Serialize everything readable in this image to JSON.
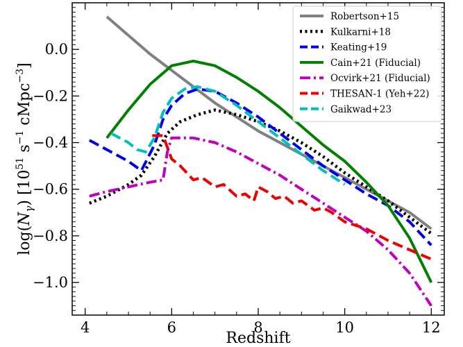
{
  "chart_data": {
    "type": "line",
    "xlabel": "Redshift",
    "ylabel_parts": {
      "prefix": "log(",
      "n_symbol": "N",
      "n_sub": "γ",
      "middle": ") [10",
      "exp1": "51",
      "unit1": " s",
      "exp2": "−1",
      "unit2": " cMpc",
      "exp3": "−3",
      "suffix": "]"
    },
    "xlim": [
      3.7,
      12.3
    ],
    "ylim": [
      -1.14,
      0.2
    ],
    "x_ticks": [
      4,
      6,
      8,
      10,
      12
    ],
    "x_tick_labels": [
      "4",
      "6",
      "8",
      "10",
      "12"
    ],
    "y_ticks": [
      0.0,
      -0.2,
      -0.4,
      -0.6,
      -0.8,
      -1.0
    ],
    "y_tick_labels": [
      "0.0",
      "−0.2",
      "−0.4",
      "−0.6",
      "−0.8",
      "−1.0"
    ],
    "legend_position": "top-right",
    "grid": false,
    "series": [
      {
        "name": "Robertson+15",
        "color": "#808080",
        "dash": "solid",
        "x": [
          4.5,
          5.0,
          5.5,
          6.0,
          6.5,
          7.0,
          7.5,
          8.0,
          8.5,
          9.0,
          9.5,
          10.0,
          10.5,
          11.0,
          11.5,
          12.0
        ],
        "y": [
          0.14,
          0.06,
          -0.02,
          -0.09,
          -0.16,
          -0.23,
          -0.29,
          -0.35,
          -0.4,
          -0.45,
          -0.5,
          -0.55,
          -0.6,
          -0.65,
          -0.7,
          -0.77
        ]
      },
      {
        "name": "Kulkarni+18",
        "color": "#000000",
        "dash": "dotted",
        "x": [
          4.1,
          4.5,
          5.0,
          5.3,
          5.6,
          5.9,
          6.2,
          6.6,
          7.0,
          7.5,
          8.0,
          8.5,
          9.0,
          9.5,
          10.0,
          10.5,
          11.0,
          11.5,
          12.0
        ],
        "y": [
          -0.66,
          -0.63,
          -0.58,
          -0.54,
          -0.46,
          -0.36,
          -0.31,
          -0.28,
          -0.26,
          -0.28,
          -0.31,
          -0.35,
          -0.4,
          -0.46,
          -0.53,
          -0.59,
          -0.65,
          -0.72,
          -0.79
        ]
      },
      {
        "name": "Keating+19",
        "color": "#0000ee",
        "dash": "dashed",
        "x": [
          4.1,
          4.5,
          5.0,
          5.3,
          5.6,
          5.8,
          6.0,
          6.3,
          6.6,
          7.0,
          7.5,
          8.0,
          8.5,
          9.0,
          9.5,
          10.0,
          10.5,
          11.0,
          11.5,
          12.0
        ],
        "y": [
          -0.39,
          -0.43,
          -0.48,
          -0.52,
          -0.41,
          -0.3,
          -0.24,
          -0.19,
          -0.17,
          -0.18,
          -0.23,
          -0.29,
          -0.36,
          -0.43,
          -0.5,
          -0.56,
          -0.62,
          -0.67,
          -0.74,
          -0.84
        ]
      },
      {
        "name": "Cain+21 (Fiducial)",
        "color": "#008000",
        "dash": "solid",
        "x": [
          4.5,
          5.0,
          5.5,
          6.0,
          6.5,
          7.0,
          7.5,
          8.0,
          8.5,
          9.0,
          9.5,
          10.0,
          10.5,
          11.0,
          11.5,
          12.0
        ],
        "y": [
          -0.38,
          -0.26,
          -0.15,
          -0.07,
          -0.05,
          -0.07,
          -0.12,
          -0.18,
          -0.25,
          -0.33,
          -0.41,
          -0.48,
          -0.57,
          -0.67,
          -0.81,
          -1.0
        ]
      },
      {
        "name": "Ocvirk+21 (Fiducial)",
        "color": "#c000c0",
        "dash": "dashdot",
        "x": [
          4.1,
          4.5,
          5.0,
          5.5,
          5.8,
          5.9,
          6.0,
          6.5,
          7.0,
          7.5,
          8.0,
          8.5,
          9.0,
          9.5,
          10.0,
          10.5,
          11.0,
          11.5,
          12.0
        ],
        "y": [
          -0.63,
          -0.61,
          -0.59,
          -0.57,
          -0.56,
          -0.44,
          -0.38,
          -0.38,
          -0.4,
          -0.44,
          -0.49,
          -0.54,
          -0.6,
          -0.66,
          -0.72,
          -0.78,
          -0.86,
          -0.96,
          -1.1
        ]
      },
      {
        "name": "THESAN-1 (Yeh+22)",
        "color": "#ee0000",
        "dash": "dashed",
        "x": [
          5.55,
          5.8,
          6.0,
          6.2,
          6.5,
          6.7,
          7.0,
          7.2,
          7.5,
          7.7,
          7.9,
          8.0,
          8.2,
          8.4,
          8.6,
          8.8,
          9.0,
          9.3,
          9.5,
          9.7,
          10.0,
          10.5,
          11.0,
          11.5,
          12.0
        ],
        "y": [
          -0.37,
          -0.37,
          -0.47,
          -0.5,
          -0.56,
          -0.55,
          -0.59,
          -0.58,
          -0.63,
          -0.62,
          -0.65,
          -0.59,
          -0.61,
          -0.64,
          -0.63,
          -0.66,
          -0.65,
          -0.69,
          -0.68,
          -0.7,
          -0.74,
          -0.77,
          -0.82,
          -0.86,
          -0.9
        ]
      },
      {
        "name": "Gaikwad+23",
        "color": "#00bfbf",
        "dash": "dashed",
        "x": [
          4.6,
          5.0,
          5.2,
          5.4,
          5.6,
          5.8,
          6.0,
          6.3,
          6.6,
          7.0,
          7.5,
          8.0,
          8.5,
          9.0,
          9.5,
          10.0
        ],
        "y": [
          -0.36,
          -0.4,
          -0.43,
          -0.44,
          -0.38,
          -0.27,
          -0.21,
          -0.17,
          -0.16,
          -0.18,
          -0.24,
          -0.31,
          -0.38,
          -0.45,
          -0.52,
          -0.58
        ]
      }
    ]
  }
}
